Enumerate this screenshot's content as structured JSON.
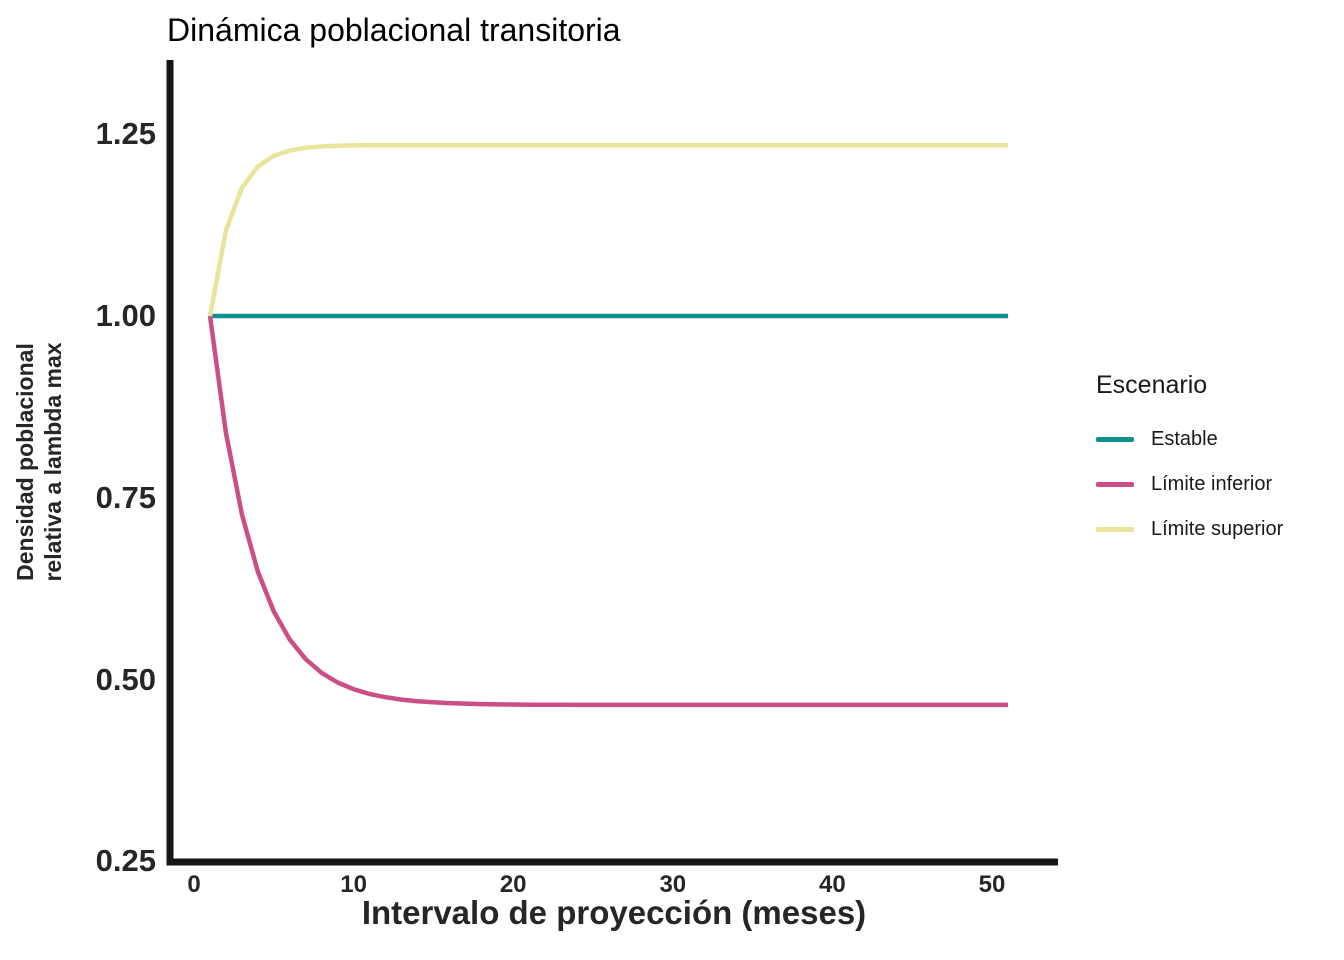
{
  "title": "Dinámica poblacional transitoria",
  "style": {
    "background": "#ffffff",
    "axis_color": "#161616",
    "text_color": "#262626"
  },
  "axes": {
    "x": {
      "title": "Intervalo de proyección (meses)",
      "ticks": [
        {
          "label": "0",
          "value": 0
        },
        {
          "label": "10",
          "value": 10
        },
        {
          "label": "20",
          "value": 20
        },
        {
          "label": "30",
          "value": 30
        },
        {
          "label": "40",
          "value": 40
        },
        {
          "label": "50",
          "value": 50
        }
      ]
    },
    "y": {
      "title_line1": "Densidad poblacional",
      "title_line2": "relativa a lambda max",
      "ticks": [
        {
          "label": "1.25",
          "value": 1.25
        },
        {
          "label": "1.00",
          "value": 1.0
        },
        {
          "label": "0.75",
          "value": 0.75
        },
        {
          "label": "0.50",
          "value": 0.5
        },
        {
          "label": "0.25",
          "value": 0.25
        }
      ]
    }
  },
  "legend": {
    "title": "Escenario",
    "entries": [
      {
        "label": "Estable",
        "color": "#0e908c"
      },
      {
        "label": "Límite inferior",
        "color": "#cb4f86"
      },
      {
        "label": "Límite superior",
        "color": "#e8e49a"
      }
    ]
  },
  "chart_data": {
    "type": "line",
    "title": "Dinámica poblacional transitoria",
    "xlabel": "Intervalo de proyección (meses)",
    "ylabel": "Densidad poblacional relativa a lambda max",
    "xlim": [
      0,
      51
    ],
    "ylim": [
      0.25,
      1.35
    ],
    "grid": false,
    "legend_position": "right",
    "legend_title": "Escenario",
    "x": [
      1,
      2,
      3,
      4,
      5,
      6,
      7,
      8,
      9,
      10,
      11,
      12,
      13,
      14,
      15,
      16,
      17,
      18,
      19,
      20,
      21,
      22,
      23,
      24,
      25,
      26,
      27,
      28,
      29,
      30,
      31,
      32,
      33,
      34,
      35,
      36,
      37,
      38,
      39,
      40,
      41,
      42,
      43,
      44,
      45,
      46,
      47,
      48,
      49,
      50,
      51
    ],
    "series": [
      {
        "name": "Estable",
        "color": "#0e908c",
        "values": [
          1.0,
          1.0,
          1.0,
          1.0,
          1.0,
          1.0,
          1.0,
          1.0,
          1.0,
          1.0,
          1.0,
          1.0,
          1.0,
          1.0,
          1.0,
          1.0,
          1.0,
          1.0,
          1.0,
          1.0,
          1.0,
          1.0,
          1.0,
          1.0,
          1.0,
          1.0,
          1.0,
          1.0,
          1.0,
          1.0,
          1.0,
          1.0,
          1.0,
          1.0,
          1.0,
          1.0,
          1.0,
          1.0,
          1.0,
          1.0,
          1.0,
          1.0,
          1.0,
          1.0,
          1.0,
          1.0,
          1.0,
          1.0,
          1.0,
          1.0,
          1.0
        ]
      },
      {
        "name": "Límite inferior",
        "color": "#cb4f86",
        "values": [
          1.0,
          0.8395,
          0.7272,
          0.6485,
          0.5935,
          0.5549,
          0.5279,
          0.5091,
          0.4959,
          0.4866,
          0.4801,
          0.4756,
          0.4724,
          0.4702,
          0.4686,
          0.4675,
          0.4668,
          0.4662,
          0.4658,
          0.4656,
          0.4654,
          0.4653,
          0.4652,
          0.4651,
          0.4651,
          0.465,
          0.465,
          0.465,
          0.465,
          0.465,
          0.465,
          0.465,
          0.465,
          0.465,
          0.465,
          0.465,
          0.465,
          0.465,
          0.465,
          0.465,
          0.465,
          0.465,
          0.465,
          0.465,
          0.465,
          0.465,
          0.465,
          0.465,
          0.465,
          0.465,
          0.465
        ]
      },
      {
        "name": "Límite superior",
        "color": "#e8e49a",
        "values": [
          1.0,
          1.1175,
          1.1763,
          1.2056,
          1.2203,
          1.2277,
          1.2313,
          1.2332,
          1.2341,
          1.2346,
          1.2348,
          1.2349,
          1.235,
          1.235,
          1.235,
          1.235,
          1.235,
          1.235,
          1.235,
          1.235,
          1.235,
          1.235,
          1.235,
          1.235,
          1.235,
          1.235,
          1.235,
          1.235,
          1.235,
          1.235,
          1.235,
          1.235,
          1.235,
          1.235,
          1.235,
          1.235,
          1.235,
          1.235,
          1.235,
          1.235,
          1.235,
          1.235,
          1.235,
          1.235,
          1.235,
          1.235,
          1.235,
          1.235,
          1.235,
          1.235,
          1.235
        ]
      }
    ]
  }
}
